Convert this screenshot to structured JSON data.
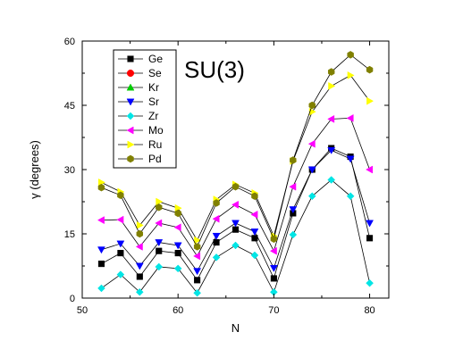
{
  "chart_data": {
    "type": "line",
    "annotation": "SU(3)",
    "xlabel": "N",
    "ylabel": "γ (degrees)",
    "xlim": [
      50,
      82
    ],
    "ylim": [
      0,
      60
    ],
    "xticks": [
      50,
      60,
      70,
      80
    ],
    "yticks": [
      0,
      15,
      30,
      45,
      60
    ],
    "x": [
      52,
      54,
      56,
      58,
      60,
      62,
      64,
      66,
      68,
      70,
      72,
      74,
      76,
      78,
      80
    ],
    "legend_position": "top-left",
    "series": [
      {
        "name": "Ge",
        "color": "#000000",
        "marker": "square",
        "values": [
          8.0,
          10.5,
          5.0,
          11.0,
          10.5,
          4.2,
          13.0,
          16.0,
          14.0,
          4.6,
          19.8,
          30.0,
          35.0,
          33.0,
          14.0
        ]
      },
      {
        "name": "Se",
        "color": "#ff0000",
        "marker": "circle",
        "values": [
          null,
          null,
          null,
          null,
          null,
          null,
          null,
          null,
          null,
          null,
          null,
          null,
          null,
          null,
          null
        ]
      },
      {
        "name": "Kr",
        "color": "#00cc00",
        "marker": "triangle-up",
        "values": [
          null,
          null,
          null,
          null,
          null,
          null,
          null,
          null,
          null,
          null,
          null,
          null,
          null,
          null,
          null
        ]
      },
      {
        "name": "Sr",
        "color": "#0000ff",
        "marker": "triangle-down",
        "values": [
          11.3,
          12.7,
          7.5,
          13.0,
          12.3,
          6.3,
          14.5,
          17.5,
          15.5,
          7.0,
          20.7,
          30.0,
          34.5,
          32.5,
          17.5
        ]
      },
      {
        "name": "Zr",
        "color": "#00e5e5",
        "marker": "diamond",
        "values": [
          2.3,
          5.5,
          1.4,
          7.3,
          6.9,
          1.2,
          9.5,
          12.3,
          10.0,
          1.4,
          14.8,
          23.8,
          27.6,
          23.8,
          3.5
        ]
      },
      {
        "name": "Mo",
        "color": "#ff00ff",
        "marker": "triangle-left",
        "values": [
          18.2,
          18.3,
          12.0,
          17.5,
          16.5,
          9.8,
          18.5,
          21.8,
          19.5,
          11.0,
          26.0,
          36.0,
          41.8,
          42.0,
          30.0
        ]
      },
      {
        "name": "Ru",
        "color": "#ffff00",
        "marker": "triangle-right",
        "values": [
          27.0,
          24.8,
          17.0,
          22.5,
          21.0,
          13.5,
          23.0,
          26.5,
          24.5,
          14.5,
          32.0,
          43.5,
          49.5,
          52.0,
          46.0
        ]
      },
      {
        "name": "Pd",
        "color": "#808000",
        "marker": "hexagon",
        "values": [
          25.8,
          24.0,
          15.0,
          21.2,
          19.8,
          12.0,
          22.2,
          26.0,
          23.8,
          13.8,
          32.2,
          45.0,
          52.8,
          56.8,
          53.3
        ]
      }
    ]
  }
}
